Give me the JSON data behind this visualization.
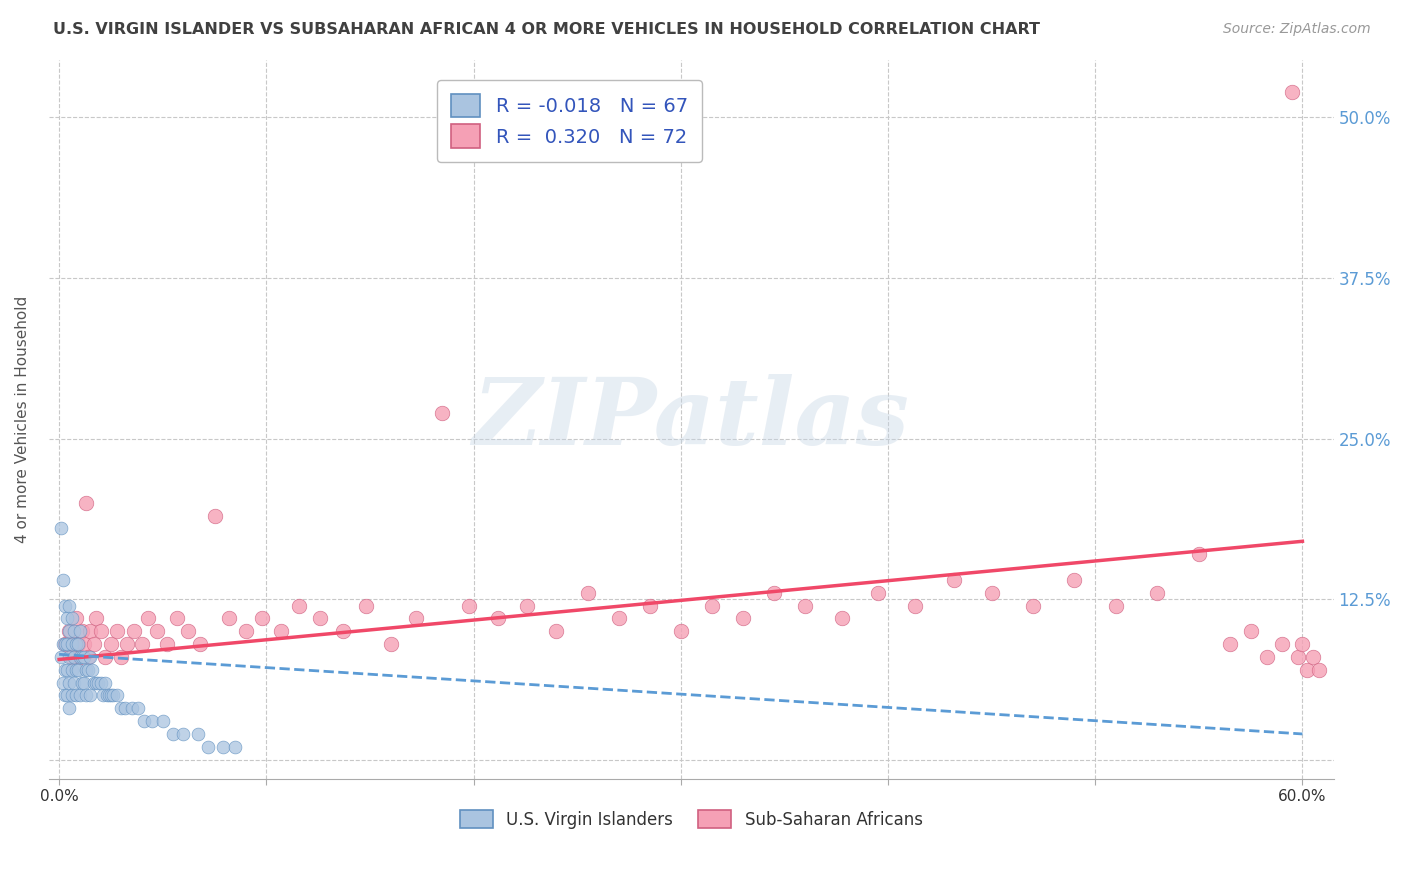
{
  "title": "U.S. VIRGIN ISLANDER VS SUBSAHARAN AFRICAN 4 OR MORE VEHICLES IN HOUSEHOLD CORRELATION CHART",
  "source": "Source: ZipAtlas.com",
  "ylabel": "4 or more Vehicles in Household",
  "xlim": [
    -0.005,
    0.615
  ],
  "ylim": [
    -0.015,
    0.545
  ],
  "ytick_vals": [
    0.0,
    0.125,
    0.25,
    0.375,
    0.5
  ],
  "ytick_labels": [
    "",
    "12.5%",
    "25.0%",
    "37.5%",
    "50.0%"
  ],
  "xtick_vals": [
    0.0,
    0.1,
    0.2,
    0.3,
    0.4,
    0.5,
    0.6
  ],
  "xtick_labels": [
    "0.0%",
    "",
    "",
    "",
    "",
    "",
    "60.0%"
  ],
  "r_blue": -0.018,
  "n_blue": 67,
  "r_pink": 0.32,
  "n_pink": 72,
  "blue_dot_color": "#aac4e0",
  "pink_dot_color": "#f5a0b5",
  "blue_line_color": "#5b9bd5",
  "pink_line_color": "#f04868",
  "blue_edge_color": "#6090c0",
  "pink_edge_color": "#d06080",
  "watermark": "ZIPatlas",
  "bg_color": "#ffffff",
  "grid_color": "#c8c8c8",
  "title_color": "#404040",
  "legend_label_blue": "U.S. Virgin Islanders",
  "legend_label_pink": "Sub-Saharan Africans",
  "right_label_color": "#5b9bd5",
  "blue_x": [
    0.001,
    0.001,
    0.002,
    0.002,
    0.002,
    0.003,
    0.003,
    0.003,
    0.003,
    0.004,
    0.004,
    0.004,
    0.004,
    0.005,
    0.005,
    0.005,
    0.005,
    0.005,
    0.006,
    0.006,
    0.006,
    0.006,
    0.007,
    0.007,
    0.007,
    0.008,
    0.008,
    0.008,
    0.009,
    0.009,
    0.01,
    0.01,
    0.01,
    0.011,
    0.011,
    0.012,
    0.012,
    0.013,
    0.013,
    0.014,
    0.015,
    0.015,
    0.016,
    0.017,
    0.018,
    0.019,
    0.02,
    0.021,
    0.022,
    0.023,
    0.024,
    0.025,
    0.026,
    0.028,
    0.03,
    0.032,
    0.035,
    0.038,
    0.041,
    0.045,
    0.05,
    0.055,
    0.06,
    0.067,
    0.072,
    0.079,
    0.085
  ],
  "blue_y": [
    0.18,
    0.08,
    0.14,
    0.09,
    0.06,
    0.12,
    0.09,
    0.07,
    0.05,
    0.11,
    0.09,
    0.07,
    0.05,
    0.12,
    0.1,
    0.08,
    0.06,
    0.04,
    0.11,
    0.09,
    0.07,
    0.05,
    0.1,
    0.08,
    0.06,
    0.09,
    0.07,
    0.05,
    0.09,
    0.07,
    0.1,
    0.08,
    0.05,
    0.08,
    0.06,
    0.08,
    0.06,
    0.07,
    0.05,
    0.07,
    0.08,
    0.05,
    0.07,
    0.06,
    0.06,
    0.06,
    0.06,
    0.05,
    0.06,
    0.05,
    0.05,
    0.05,
    0.05,
    0.05,
    0.04,
    0.04,
    0.04,
    0.04,
    0.03,
    0.03,
    0.03,
    0.02,
    0.02,
    0.02,
    0.01,
    0.01,
    0.01
  ],
  "pink_x": [
    0.003,
    0.005,
    0.006,
    0.007,
    0.008,
    0.009,
    0.01,
    0.011,
    0.012,
    0.013,
    0.014,
    0.015,
    0.017,
    0.018,
    0.02,
    0.022,
    0.025,
    0.028,
    0.03,
    0.033,
    0.036,
    0.04,
    0.043,
    0.047,
    0.052,
    0.057,
    0.062,
    0.068,
    0.075,
    0.082,
    0.09,
    0.098,
    0.107,
    0.116,
    0.126,
    0.137,
    0.148,
    0.16,
    0.172,
    0.185,
    0.198,
    0.212,
    0.226,
    0.24,
    0.255,
    0.27,
    0.285,
    0.3,
    0.315,
    0.33,
    0.345,
    0.36,
    0.378,
    0.395,
    0.413,
    0.432,
    0.45,
    0.47,
    0.49,
    0.51,
    0.53,
    0.55,
    0.565,
    0.575,
    0.583,
    0.59,
    0.595,
    0.598,
    0.6,
    0.602,
    0.605,
    0.608
  ],
  "pink_y": [
    0.09,
    0.1,
    0.08,
    0.09,
    0.11,
    0.09,
    0.08,
    0.1,
    0.09,
    0.2,
    0.08,
    0.1,
    0.09,
    0.11,
    0.1,
    0.08,
    0.09,
    0.1,
    0.08,
    0.09,
    0.1,
    0.09,
    0.11,
    0.1,
    0.09,
    0.11,
    0.1,
    0.09,
    0.19,
    0.11,
    0.1,
    0.11,
    0.1,
    0.12,
    0.11,
    0.1,
    0.12,
    0.09,
    0.11,
    0.27,
    0.12,
    0.11,
    0.12,
    0.1,
    0.13,
    0.11,
    0.12,
    0.1,
    0.12,
    0.11,
    0.13,
    0.12,
    0.11,
    0.13,
    0.12,
    0.14,
    0.13,
    0.12,
    0.14,
    0.12,
    0.13,
    0.16,
    0.09,
    0.1,
    0.08,
    0.09,
    0.52,
    0.08,
    0.09,
    0.07,
    0.08,
    0.07
  ],
  "blue_trend_x0": 0.0,
  "blue_trend_x1": 0.6,
  "blue_trend_y0": 0.082,
  "blue_trend_y1": 0.02,
  "pink_trend_x0": 0.0,
  "pink_trend_x1": 0.6,
  "pink_trend_y0": 0.078,
  "pink_trend_y1": 0.17
}
